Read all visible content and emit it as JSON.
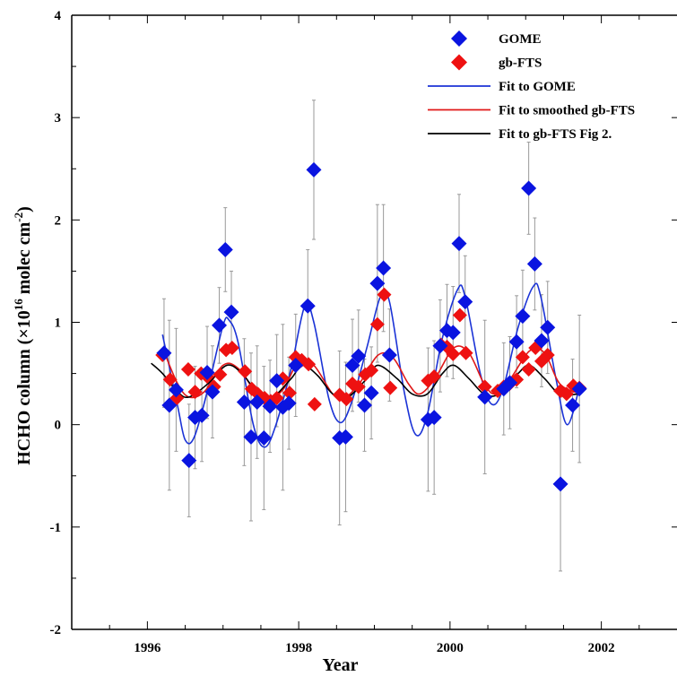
{
  "chart_data": {
    "type": "scatter",
    "title": "",
    "xlabel": "Year",
    "ylabel_text": "HCHO column (×10",
    "ylabel_exp": "16",
    "ylabel_text2": " molec cm",
    "ylabel_exp2": "-2",
    "ylabel_text3": ")",
    "xlim": [
      1995.0,
      2003.0
    ],
    "ylim": [
      -2,
      4
    ],
    "x_ticks": [
      1996,
      1998,
      2000,
      2002
    ],
    "y_ticks": [
      -2,
      -1,
      0,
      1,
      2,
      3,
      4
    ],
    "x_tick_labels": [
      "1996",
      "1998",
      "2000",
      "2002"
    ],
    "y_tick_labels": [
      "-2",
      "-1",
      "0",
      "1",
      "2",
      "3",
      "4"
    ],
    "grid": false,
    "legend_position": "top-right",
    "legend": [
      "GOME",
      "gb-FTS",
      "Fit to GOME",
      "Fit to smoothed gb-FTS",
      "Fit to gb-FTS Fig 2."
    ],
    "colors": {
      "gome": "#0a14e0",
      "gbfts": "#ee1111",
      "fit_gome": "#1b33d6",
      "fit_smoothed": "#e01818",
      "fit_fig2": "#000000",
      "error_bar": "#999999"
    },
    "series": [
      {
        "name": "GOME",
        "kind": "marker",
        "points": [
          {
            "x": 1996.22,
            "y": 0.7,
            "err": 0.53
          },
          {
            "x": 1996.29,
            "y": 0.19,
            "err": 0.83
          },
          {
            "x": 1996.38,
            "y": 0.34,
            "err": 0.6
          },
          {
            "x": 1996.55,
            "y": -0.35,
            "err": 0.55
          },
          {
            "x": 1996.63,
            "y": 0.07,
            "err": 0.5
          },
          {
            "x": 1996.72,
            "y": 0.09,
            "err": 0.45
          },
          {
            "x": 1996.79,
            "y": 0.51,
            "err": 0.45
          },
          {
            "x": 1996.86,
            "y": 0.32,
            "err": 0.45
          },
          {
            "x": 1996.95,
            "y": 0.97,
            "err": 0.37
          },
          {
            "x": 1997.03,
            "y": 1.71,
            "err": 0.41
          },
          {
            "x": 1997.11,
            "y": 1.1,
            "err": 0.4
          },
          {
            "x": 1997.28,
            "y": 0.22,
            "err": 0.62
          },
          {
            "x": 1997.37,
            "y": -0.12,
            "err": 0.82
          },
          {
            "x": 1997.45,
            "y": 0.22,
            "err": 0.55
          },
          {
            "x": 1997.54,
            "y": -0.13,
            "err": 0.7
          },
          {
            "x": 1997.62,
            "y": 0.18,
            "err": 0.45
          },
          {
            "x": 1997.71,
            "y": 0.43,
            "err": 0.45
          },
          {
            "x": 1997.79,
            "y": 0.17,
            "err": 0.81
          },
          {
            "x": 1997.87,
            "y": 0.21,
            "err": 0.45
          },
          {
            "x": 1997.96,
            "y": 0.58,
            "err": 0.5
          },
          {
            "x": 1998.12,
            "y": 1.16,
            "err": 0.55
          },
          {
            "x": 1998.2,
            "y": 2.49,
            "err": 0.68
          },
          {
            "x": 1998.54,
            "y": -0.13,
            "err": 0.85
          },
          {
            "x": 1998.62,
            "y": -0.12,
            "err": 0.73
          },
          {
            "x": 1998.71,
            "y": 0.58,
            "err": 0.45
          },
          {
            "x": 1998.79,
            "y": 0.67,
            "err": 0.45
          },
          {
            "x": 1998.87,
            "y": 0.19,
            "err": 0.45
          },
          {
            "x": 1998.96,
            "y": 0.31,
            "err": 0.45
          },
          {
            "x": 1999.04,
            "y": 1.38,
            "err": 0.77
          },
          {
            "x": 1999.12,
            "y": 1.53,
            "err": 0.62
          },
          {
            "x": 1999.2,
            "y": 0.68,
            "err": 0.45
          },
          {
            "x": 1999.71,
            "y": 0.05,
            "err": 0.7
          },
          {
            "x": 1999.79,
            "y": 0.07,
            "err": 0.75
          },
          {
            "x": 1999.87,
            "y": 0.77,
            "err": 0.45
          },
          {
            "x": 1999.96,
            "y": 0.92,
            "err": 0.45
          },
          {
            "x": 2000.04,
            "y": 0.9,
            "err": 0.45
          },
          {
            "x": 2000.12,
            "y": 1.77,
            "err": 0.48
          },
          {
            "x": 2000.2,
            "y": 1.2,
            "err": 0.45
          },
          {
            "x": 2000.46,
            "y": 0.27,
            "err": 0.75
          },
          {
            "x": 2000.71,
            "y": 0.35,
            "err": 0.45
          },
          {
            "x": 2000.79,
            "y": 0.41,
            "err": 0.45
          },
          {
            "x": 2000.88,
            "y": 0.81,
            "err": 0.45
          },
          {
            "x": 2000.96,
            "y": 1.06,
            "err": 0.45
          },
          {
            "x": 2001.04,
            "y": 2.31,
            "err": 0.45
          },
          {
            "x": 2001.12,
            "y": 1.57,
            "err": 0.45
          },
          {
            "x": 2001.21,
            "y": 0.82,
            "err": 0.45
          },
          {
            "x": 2001.29,
            "y": 0.95,
            "err": 0.45
          },
          {
            "x": 2001.46,
            "y": -0.58,
            "err": 0.85
          },
          {
            "x": 2001.62,
            "y": 0.19,
            "err": 0.45
          },
          {
            "x": 2001.71,
            "y": 0.35,
            "err": 0.72
          }
        ]
      },
      {
        "name": "gb-FTS",
        "kind": "marker",
        "points": [
          {
            "x": 1996.2,
            "y": 0.68
          },
          {
            "x": 1996.3,
            "y": 0.44
          },
          {
            "x": 1996.39,
            "y": 0.26
          },
          {
            "x": 1996.54,
            "y": 0.54
          },
          {
            "x": 1996.63,
            "y": 0.32
          },
          {
            "x": 1996.71,
            "y": 0.5
          },
          {
            "x": 1996.79,
            "y": 0.47
          },
          {
            "x": 1996.88,
            "y": 0.37
          },
          {
            "x": 1996.96,
            "y": 0.49
          },
          {
            "x": 1997.04,
            "y": 0.73
          },
          {
            "x": 1997.12,
            "y": 0.75
          },
          {
            "x": 1997.29,
            "y": 0.52
          },
          {
            "x": 1997.38,
            "y": 0.35
          },
          {
            "x": 1997.46,
            "y": 0.3
          },
          {
            "x": 1997.55,
            "y": 0.26
          },
          {
            "x": 1997.63,
            "y": 0.23
          },
          {
            "x": 1997.71,
            "y": 0.26
          },
          {
            "x": 1997.79,
            "y": 0.45
          },
          {
            "x": 1997.88,
            "y": 0.31
          },
          {
            "x": 1997.96,
            "y": 0.66
          },
          {
            "x": 1998.04,
            "y": 0.63
          },
          {
            "x": 1998.13,
            "y": 0.59
          },
          {
            "x": 1998.21,
            "y": 0.2
          },
          {
            "x": 1998.54,
            "y": 0.29
          },
          {
            "x": 1998.63,
            "y": 0.25
          },
          {
            "x": 1998.71,
            "y": 0.4
          },
          {
            "x": 1998.79,
            "y": 0.37
          },
          {
            "x": 1998.88,
            "y": 0.49
          },
          {
            "x": 1998.96,
            "y": 0.53
          },
          {
            "x": 1999.04,
            "y": 0.98
          },
          {
            "x": 1999.13,
            "y": 1.27
          },
          {
            "x": 1999.21,
            "y": 0.36
          },
          {
            "x": 1999.71,
            "y": 0.43
          },
          {
            "x": 1999.79,
            "y": 0.47
          },
          {
            "x": 1999.88,
            "y": 0.78
          },
          {
            "x": 1999.96,
            "y": 0.76
          },
          {
            "x": 2000.04,
            "y": 0.69
          },
          {
            "x": 2000.13,
            "y": 1.07
          },
          {
            "x": 2000.21,
            "y": 0.7
          },
          {
            "x": 2000.46,
            "y": 0.37
          },
          {
            "x": 2000.63,
            "y": 0.33
          },
          {
            "x": 2000.71,
            "y": 0.37
          },
          {
            "x": 2000.79,
            "y": 0.4
          },
          {
            "x": 2000.88,
            "y": 0.44
          },
          {
            "x": 2000.96,
            "y": 0.66
          },
          {
            "x": 2001.04,
            "y": 0.54
          },
          {
            "x": 2001.13,
            "y": 0.75
          },
          {
            "x": 2001.21,
            "y": 0.62
          },
          {
            "x": 2001.29,
            "y": 0.68
          },
          {
            "x": 2001.46,
            "y": 0.33
          },
          {
            "x": 2001.54,
            "y": 0.3
          },
          {
            "x": 2001.63,
            "y": 0.38
          },
          {
            "x": 2001.71,
            "y": 0.36
          }
        ]
      },
      {
        "name": "Fit to GOME",
        "kind": "line",
        "x": [
          1996.2,
          1996.4,
          1996.5,
          1996.62,
          1996.8,
          1997.0,
          1997.08,
          1997.2,
          1997.4,
          1997.55,
          1997.7,
          1997.9,
          1998.08,
          1998.2,
          1998.4,
          1998.55,
          1998.7,
          1998.9,
          1999.08,
          1999.2,
          1999.4,
          1999.55,
          1999.7,
          1999.9,
          2000.1,
          2000.2,
          2000.4,
          2000.55,
          2000.7,
          2000.9,
          2001.1,
          2001.2,
          2001.4,
          2001.55,
          2001.72
        ],
        "y": [
          0.88,
          0.18,
          -0.15,
          -0.12,
          0.35,
          0.97,
          1.02,
          0.8,
          0.0,
          -0.22,
          0.0,
          0.55,
          1.16,
          1.0,
          0.25,
          0.02,
          0.22,
          0.75,
          1.25,
          1.2,
          0.3,
          -0.1,
          0.1,
          0.85,
          1.32,
          1.25,
          0.5,
          0.2,
          0.35,
          0.95,
          1.35,
          1.25,
          0.45,
          0.0,
          0.4
        ]
      },
      {
        "name": "Fit to smoothed gb-FTS",
        "kind": "line",
        "x": [
          1996.2,
          1996.4,
          1996.55,
          1996.75,
          1997.0,
          1997.2,
          1997.45,
          1997.6,
          1997.8,
          1998.0,
          1998.2,
          1998.45,
          1998.6,
          1998.8,
          1999.05,
          1999.25,
          1999.45,
          1999.6,
          1999.8,
          2000.05,
          2000.25,
          2000.45,
          2000.6,
          2000.8,
          2001.05,
          2001.25,
          2001.45,
          2001.72
        ],
        "y": [
          0.75,
          0.4,
          0.27,
          0.32,
          0.58,
          0.55,
          0.3,
          0.25,
          0.35,
          0.62,
          0.58,
          0.3,
          0.26,
          0.4,
          0.68,
          0.65,
          0.4,
          0.3,
          0.45,
          0.75,
          0.7,
          0.4,
          0.3,
          0.45,
          0.72,
          0.7,
          0.4,
          0.3
        ]
      },
      {
        "name": "Fit to gb-FTS Fig 2.",
        "kind": "line",
        "x": [
          1996.05,
          1996.2,
          1996.4,
          1996.55,
          1996.8,
          1997.05,
          1997.25,
          1997.45,
          1997.65,
          1997.9,
          1998.05,
          1998.25,
          1998.45,
          1998.65,
          1998.9,
          1999.05,
          1999.3,
          1999.5,
          1999.7,
          1999.9,
          2000.05,
          2000.25,
          2000.45,
          2000.65,
          2000.9,
          2001.05,
          2001.25,
          2001.45,
          2001.7
        ],
        "y": [
          0.6,
          0.5,
          0.32,
          0.27,
          0.4,
          0.58,
          0.5,
          0.32,
          0.27,
          0.45,
          0.58,
          0.48,
          0.3,
          0.27,
          0.45,
          0.58,
          0.45,
          0.3,
          0.3,
          0.5,
          0.58,
          0.45,
          0.3,
          0.3,
          0.5,
          0.58,
          0.45,
          0.3,
          0.3
        ]
      }
    ]
  }
}
